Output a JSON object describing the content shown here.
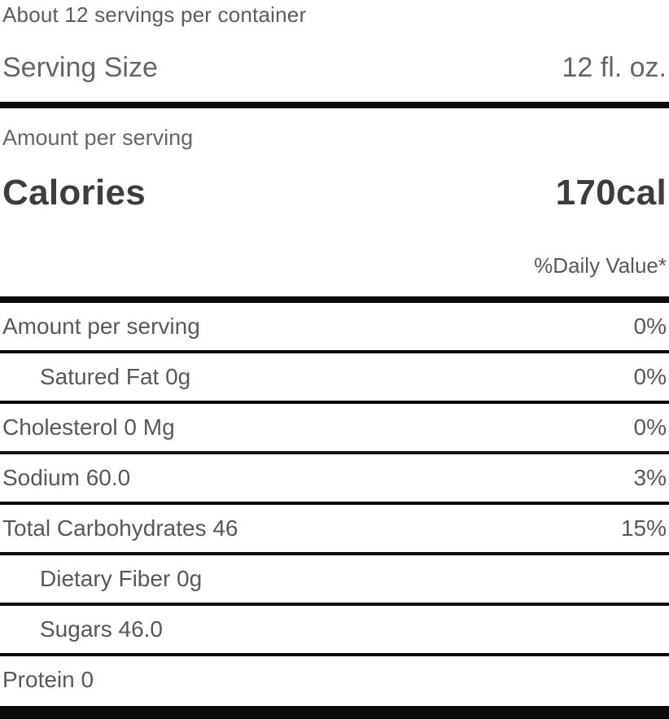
{
  "header": {
    "servings_per_container": "About 12 servings per container",
    "serving_size_label": "Serving Size",
    "serving_size_value": "12 fl. oz.",
    "amount_per_serving_label": "Amount per serving",
    "calories_label": "Calories",
    "calories_value": "170cal",
    "daily_value_note": "%Daily Value*"
  },
  "nutrients": [
    {
      "label": "Amount per serving",
      "value": "0%"
    },
    {
      "label": "Satured Fat 0g",
      "value": "0%"
    },
    {
      "label": "Cholesterol 0 Mg",
      "value": "0%"
    },
    {
      "label": "Sodium 60.0",
      "value": "3%"
    },
    {
      "label": "Total Carbohydrates 46",
      "value": "15%"
    },
    {
      "label": "Dietary Fiber 0g",
      "value": ""
    },
    {
      "label": "Sugars 46.0",
      "value": ""
    },
    {
      "label": "Protein 0",
      "value": ""
    }
  ],
  "colors": {
    "background": "#ffffff",
    "text_dark": "#3a3d42",
    "text_mid": "#55585d",
    "text_light": "#63666b",
    "rule": "#0b0b0c"
  }
}
